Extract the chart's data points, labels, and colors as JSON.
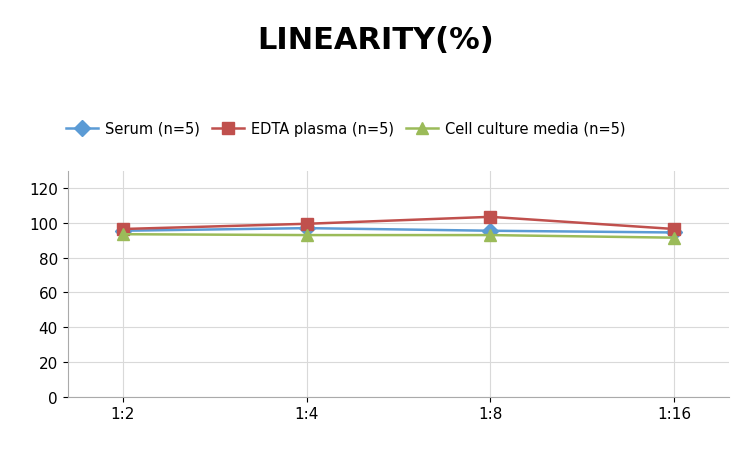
{
  "title": "LINEARITY(%)",
  "title_fontsize": 22,
  "title_fontweight": "bold",
  "x_labels": [
    "1:2",
    "1:4",
    "1:8",
    "1:16"
  ],
  "series": [
    {
      "label": "Serum (n=5)",
      "values": [
        95.5,
        97.0,
        95.5,
        94.5
      ],
      "color": "#5B9BD5",
      "marker": "D",
      "marker_facecolor": "#5B9BD5",
      "linewidth": 1.8
    },
    {
      "label": "EDTA plasma (n=5)",
      "values": [
        96.5,
        99.5,
        103.5,
        96.5
      ],
      "color": "#C0504D",
      "marker": "s",
      "marker_facecolor": "#C0504D",
      "linewidth": 1.8
    },
    {
      "label": "Cell culture media (n=5)",
      "values": [
        93.5,
        93.0,
        93.0,
        91.5
      ],
      "color": "#9BBB59",
      "marker": "^",
      "marker_facecolor": "#9BBB59",
      "linewidth": 1.8
    }
  ],
  "ylim": [
    0,
    130
  ],
  "yticks": [
    0,
    20,
    40,
    60,
    80,
    100,
    120
  ],
  "ylabel": "",
  "xlabel": "",
  "grid_color": "#D9D9D9",
  "background_color": "#FFFFFF",
  "legend_fontsize": 10.5,
  "axis_fontsize": 11,
  "marker_size": 8
}
